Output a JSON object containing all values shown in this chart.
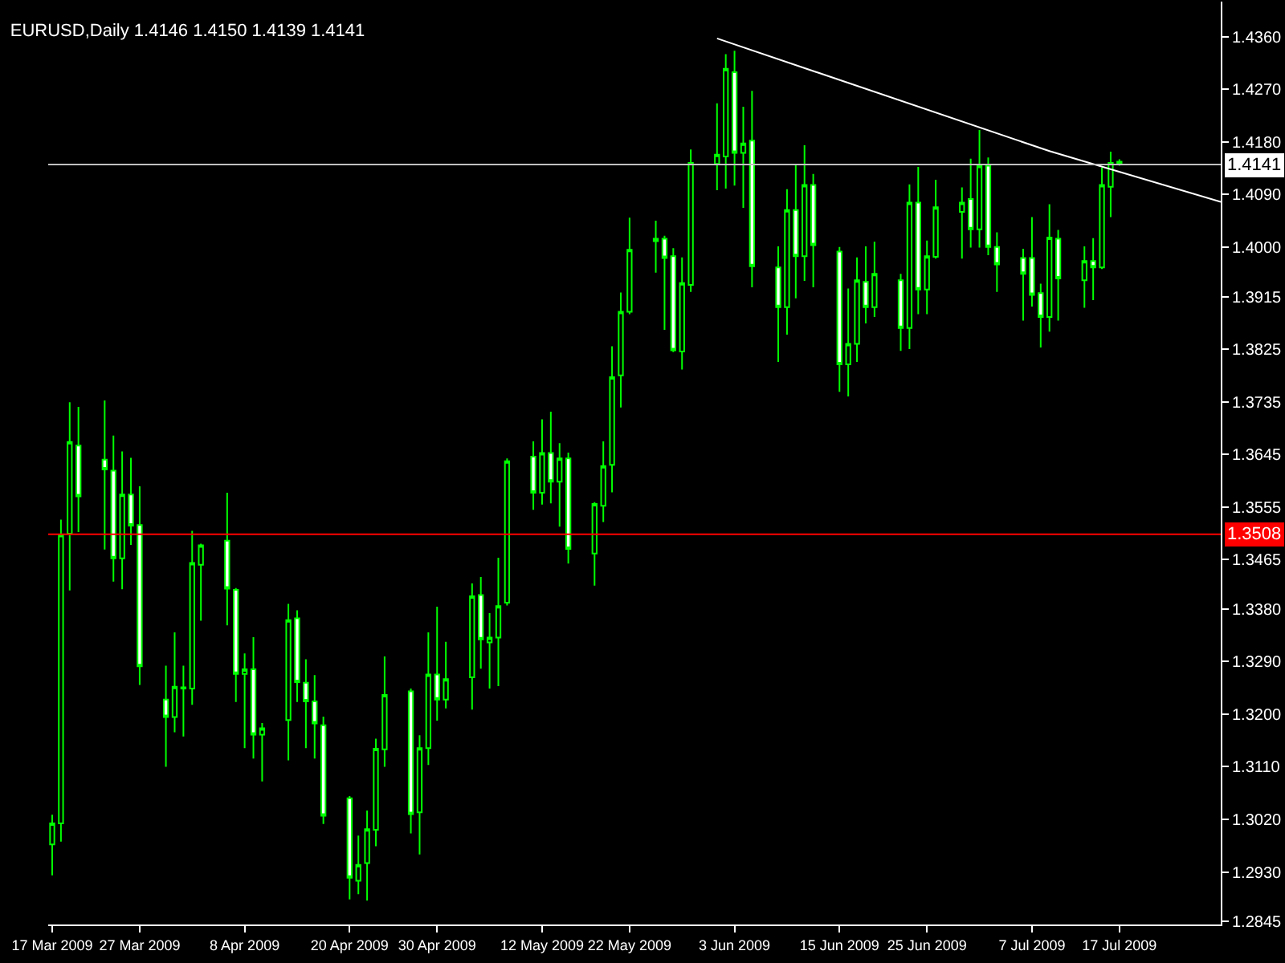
{
  "chart_data": {
    "type": "candlestick",
    "title": "EURUSD,Daily 1.4146 1.4150 1.4139 1.4141",
    "x": [
      "2009-03-17",
      "2009-03-18",
      "2009-03-19",
      "2009-03-20",
      "2009-03-23",
      "2009-03-24",
      "2009-03-25",
      "2009-03-26",
      "2009-03-27",
      "2009-03-30",
      "2009-03-31",
      "2009-04-01",
      "2009-04-02",
      "2009-04-03",
      "2009-04-06",
      "2009-04-07",
      "2009-04-08",
      "2009-04-09",
      "2009-04-10",
      "2009-04-13",
      "2009-04-14",
      "2009-04-15",
      "2009-04-16",
      "2009-04-17",
      "2009-04-20",
      "2009-04-21",
      "2009-04-22",
      "2009-04-23",
      "2009-04-24",
      "2009-04-27",
      "2009-04-28",
      "2009-04-29",
      "2009-04-30",
      "2009-05-01",
      "2009-05-04",
      "2009-05-05",
      "2009-05-06",
      "2009-05-07",
      "2009-05-08",
      "2009-05-11",
      "2009-05-12",
      "2009-05-13",
      "2009-05-14",
      "2009-05-15",
      "2009-05-18",
      "2009-05-19",
      "2009-05-20",
      "2009-05-21",
      "2009-05-22",
      "2009-05-25",
      "2009-05-26",
      "2009-05-27",
      "2009-05-28",
      "2009-05-29",
      "2009-06-01",
      "2009-06-02",
      "2009-06-03",
      "2009-06-04",
      "2009-06-05",
      "2009-06-08",
      "2009-06-09",
      "2009-06-10",
      "2009-06-11",
      "2009-06-12",
      "2009-06-15",
      "2009-06-16",
      "2009-06-17",
      "2009-06-18",
      "2009-06-19",
      "2009-06-22",
      "2009-06-23",
      "2009-06-24",
      "2009-06-25",
      "2009-06-26",
      "2009-06-29",
      "2009-06-30",
      "2009-07-01",
      "2009-07-02",
      "2009-07-03",
      "2009-07-06",
      "2009-07-07",
      "2009-07-08",
      "2009-07-09",
      "2009-07-10",
      "2009-07-13",
      "2009-07-14",
      "2009-07-15",
      "2009-07-16",
      "2009-07-17"
    ],
    "series": [
      {
        "color": "#00ff00",
        "ohlc": [
          [
            1.2977,
            1.3028,
            1.2924,
            1.3013
          ],
          [
            1.3013,
            1.3533,
            1.2982,
            1.3507
          ],
          [
            1.3509,
            1.3734,
            1.3412,
            1.3666
          ],
          [
            1.366,
            1.3726,
            1.3512,
            1.3573
          ],
          [
            1.3636,
            1.3737,
            1.3482,
            1.3619
          ],
          [
            1.3617,
            1.3677,
            1.3427,
            1.3467
          ],
          [
            1.3467,
            1.365,
            1.3414,
            1.3576
          ],
          [
            1.3576,
            1.3639,
            1.349,
            1.3523
          ],
          [
            1.3524,
            1.359,
            1.325,
            1.3282
          ],
          [
            1.3225,
            1.3283,
            1.311,
            1.3195
          ],
          [
            1.3195,
            1.334,
            1.3169,
            1.3247
          ],
          [
            1.3244,
            1.3283,
            1.3162,
            1.3246
          ],
          [
            1.3244,
            1.3514,
            1.3216,
            1.3459
          ],
          [
            1.3456,
            1.3492,
            1.336,
            1.3489
          ],
          [
            1.3497,
            1.3579,
            1.3352,
            1.3415
          ],
          [
            1.3413,
            1.3416,
            1.3221,
            1.3269
          ],
          [
            1.3269,
            1.3304,
            1.3142,
            1.3277
          ],
          [
            1.3277,
            1.3332,
            1.3124,
            1.3165
          ],
          [
            1.3165,
            1.3185,
            1.3085,
            1.3176
          ],
          [
            1.319,
            1.3389,
            1.3121,
            1.3361
          ],
          [
            1.3364,
            1.3378,
            1.3221,
            1.3255
          ],
          [
            1.3254,
            1.3294,
            1.3142,
            1.3222
          ],
          [
            1.3222,
            1.3267,
            1.3124,
            1.3184
          ],
          [
            1.3181,
            1.3196,
            1.3012,
            1.3026
          ],
          [
            1.3056,
            1.306,
            1.2883,
            1.292
          ],
          [
            1.2915,
            1.2992,
            1.2892,
            1.2942
          ],
          [
            1.2945,
            1.3035,
            1.2881,
            1.3003
          ],
          [
            1.3002,
            1.3158,
            1.2974,
            1.3141
          ],
          [
            1.314,
            1.3299,
            1.311,
            1.3233
          ],
          [
            1.3239,
            1.3244,
            1.2996,
            1.3029
          ],
          [
            1.3032,
            1.3164,
            1.296,
            1.3142
          ],
          [
            1.3142,
            1.334,
            1.3113,
            1.3268
          ],
          [
            1.3268,
            1.3384,
            1.3189,
            1.3225
          ],
          [
            1.3225,
            1.3324,
            1.321,
            1.326
          ],
          [
            1.3263,
            1.3424,
            1.3208,
            1.3402
          ],
          [
            1.3404,
            1.3435,
            1.3278,
            1.3328
          ],
          [
            1.3323,
            1.3373,
            1.3244,
            1.3331
          ],
          [
            1.3331,
            1.3468,
            1.3248,
            1.3385
          ],
          [
            1.3391,
            1.3638,
            1.3386,
            1.3633
          ],
          [
            1.3641,
            1.3667,
            1.355,
            1.3579
          ],
          [
            1.3579,
            1.3705,
            1.3559,
            1.3647
          ],
          [
            1.3647,
            1.3718,
            1.3561,
            1.3598
          ],
          [
            1.3598,
            1.3664,
            1.3521,
            1.3638
          ],
          [
            1.3638,
            1.3648,
            1.3458,
            1.3483
          ],
          [
            1.3475,
            1.3563,
            1.342,
            1.356
          ],
          [
            1.3557,
            1.3667,
            1.3529,
            1.3625
          ],
          [
            1.3627,
            1.383,
            1.358,
            1.3777
          ],
          [
            1.378,
            1.3922,
            1.3725,
            1.3889
          ],
          [
            1.3889,
            1.405,
            1.3885,
            1.3995
          ],
          [
            1.401,
            1.4045,
            1.3956,
            1.4014
          ],
          [
            1.4014,
            1.4019,
            1.3858,
            1.3981
          ],
          [
            1.3984,
            1.3998,
            1.382,
            1.3823
          ],
          [
            1.3821,
            1.3982,
            1.379,
            1.3938
          ],
          [
            1.3935,
            1.4167,
            1.3923,
            1.4144
          ],
          [
            1.4142,
            1.4246,
            1.4097,
            1.4158
          ],
          [
            1.4155,
            1.433,
            1.41,
            1.4305
          ],
          [
            1.4299,
            1.4336,
            1.4105,
            1.4161
          ],
          [
            1.4161,
            1.424,
            1.4067,
            1.4177
          ],
          [
            1.4182,
            1.4267,
            1.3931,
            1.3967
          ],
          [
            1.3965,
            1.4001,
            1.3803,
            1.3897
          ],
          [
            1.3897,
            1.4099,
            1.385,
            1.4063
          ],
          [
            1.4063,
            1.4141,
            1.3912,
            1.3984
          ],
          [
            1.3984,
            1.4174,
            1.3942,
            1.4106
          ],
          [
            1.4106,
            1.4125,
            1.3931,
            1.4003
          ],
          [
            1.3992,
            1.4,
            1.3752,
            1.3799
          ],
          [
            1.3799,
            1.3929,
            1.3744,
            1.3834
          ],
          [
            1.3834,
            1.3982,
            1.3803,
            1.3943
          ],
          [
            1.394,
            1.4001,
            1.3869,
            1.3897
          ],
          [
            1.3897,
            1.4009,
            1.388,
            1.3954
          ],
          [
            1.3943,
            1.3954,
            1.3822,
            1.3861
          ],
          [
            1.3861,
            1.4107,
            1.3825,
            1.4076
          ],
          [
            1.4076,
            1.4137,
            1.3885,
            1.3927
          ],
          [
            1.3927,
            1.4011,
            1.3885,
            1.3984
          ],
          [
            1.3983,
            1.4115,
            1.398,
            1.4068
          ],
          [
            1.406,
            1.4102,
            1.398,
            1.4076
          ],
          [
            1.4082,
            1.4151,
            1.3999,
            1.403
          ],
          [
            1.403,
            1.42,
            1.3999,
            1.4139
          ],
          [
            1.4139,
            1.4153,
            1.3986,
            1.4
          ],
          [
            1.4,
            1.4025,
            1.3923,
            1.397
          ],
          [
            1.3981,
            1.3997,
            1.3874,
            1.3954
          ],
          [
            1.3981,
            1.4051,
            1.3898,
            1.3918
          ],
          [
            1.3921,
            1.3937,
            1.3828,
            1.388
          ],
          [
            1.388,
            1.4073,
            1.3855,
            1.4016
          ],
          [
            1.4014,
            1.4029,
            1.3874,
            1.3946
          ],
          [
            1.3943,
            1.4001,
            1.3896,
            1.3976
          ],
          [
            1.3976,
            1.4015,
            1.3909,
            1.3965
          ],
          [
            1.3965,
            1.4136,
            1.3962,
            1.4106
          ],
          [
            1.4103,
            1.4163,
            1.4051,
            1.4144
          ],
          [
            1.4146,
            1.415,
            1.4139,
            1.4141
          ]
        ]
      },
      {
        "type": "line",
        "x": [
          "2009-06-01",
          "2009-07-09",
          "2009-07-28T14:00"
        ],
        "values": [
          1.4357,
          1.4164,
          1.4077
        ],
        "color": "#ffffff"
      }
    ],
    "xlim": [
      "2009-03-16T13:00",
      "2009-07-28T14:00"
    ],
    "xticks": [
      {
        "value": "2009-03-17",
        "label": "17 Mar 2009"
      },
      {
        "value": "2009-03-27",
        "label": "27 Mar 2009"
      },
      {
        "value": "2009-04-08",
        "label": "8 Apr 2009"
      },
      {
        "value": "2009-04-20",
        "label": "20 Apr 2009"
      },
      {
        "value": "2009-04-30",
        "label": "30 Apr 2009"
      },
      {
        "value": "2009-05-12",
        "label": "12 May 2009"
      },
      {
        "value": "2009-05-22",
        "label": "22 May 2009"
      },
      {
        "value": "2009-06-03",
        "label": "3 Jun 2009"
      },
      {
        "value": "2009-06-15",
        "label": "15 Jun 2009"
      },
      {
        "value": "2009-06-25",
        "label": "25 Jun 2009"
      },
      {
        "value": "2009-07-07",
        "label": "7 Jul 2009"
      },
      {
        "value": "2009-07-17",
        "label": "17 Jul 2009"
      }
    ],
    "ylim": [
      1.284,
      1.442
    ],
    "yticks": [
      {
        "value": 1.436,
        "label": "1.4360"
      },
      {
        "value": 1.427,
        "label": "1.4270"
      },
      {
        "value": 1.418,
        "label": "1.4180"
      },
      {
        "value": 1.409,
        "label": "1.4090"
      },
      {
        "value": 1.4,
        "label": "1.4000"
      },
      1.3915,
      1.3825,
      1.3735,
      1.3645,
      1.3555,
      1.3465,
      {
        "value": 1.338,
        "label": "1.3380"
      },
      {
        "value": 1.329,
        "label": "1.3290"
      },
      {
        "value": 1.32,
        "label": "1.3200"
      },
      {
        "value": 1.311,
        "label": "1.3110"
      },
      {
        "value": 1.302,
        "label": "1.3020"
      },
      {
        "value": 1.293,
        "label": "1.2930"
      },
      1.2845
    ],
    "ref_lines": [
      {
        "axis": "y",
        "value": 1.4141,
        "label": "1.4141",
        "color": "#c0c0c0"
      },
      {
        "axis": "y",
        "value": 1.3508,
        "label": "1.3508",
        "color": "#ff0000"
      }
    ],
    "grid": false,
    "marker": "none"
  }
}
